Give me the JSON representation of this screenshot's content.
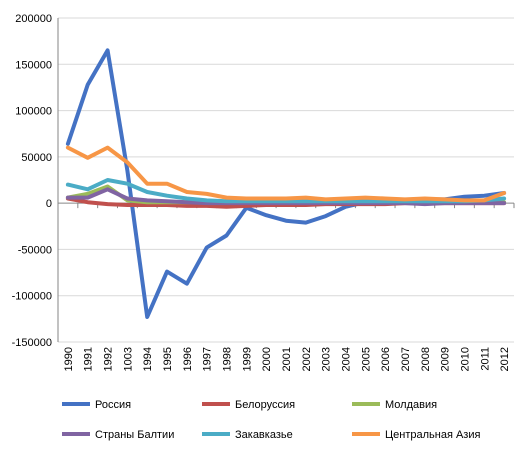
{
  "chart_data": {
    "type": "line",
    "title": "",
    "xlabel": "",
    "ylabel": "",
    "ylim": [
      -150000,
      200000
    ],
    "yticks": [
      200000,
      150000,
      100000,
      50000,
      0,
      -50000,
      -100000,
      -150000
    ],
    "ytick_labels": [
      "200000",
      "150000",
      "100000",
      "50000",
      "0",
      "-50000",
      "-100000",
      "-150000"
    ],
    "categories": [
      "1990",
      "1991",
      "1992",
      "1003",
      "1994",
      "1995",
      "1996",
      "1997",
      "1998",
      "1999",
      "2000",
      "2001",
      "2002",
      "2003",
      "2004",
      "2005",
      "2006",
      "2007",
      "2008",
      "2009",
      "2010",
      "2011",
      "2012"
    ],
    "grid": "horizontal",
    "legend_position": "bottom",
    "series": [
      {
        "name": "Россия",
        "color": "#4472C4",
        "values": [
          64000,
          128000,
          165000,
          35000,
          -123000,
          -74000,
          -87000,
          -48000,
          -35000,
          -5000,
          -13000,
          -19000,
          -21000,
          -14000,
          -4000,
          1000,
          1000,
          3000,
          4000,
          4000,
          7000,
          8000,
          11000
        ]
      },
      {
        "name": "Белоруссия",
        "color": "#C0504D",
        "values": [
          5000,
          1000,
          -1000,
          -2000,
          -2000,
          -2000,
          -3000,
          -3000,
          -4000,
          -3000,
          -2000,
          -2000,
          -2000,
          -1000,
          -1000,
          -1000,
          -1000,
          0,
          0,
          0,
          0,
          0,
          0
        ]
      },
      {
        "name": "Молдавия",
        "color": "#9BBB59",
        "values": [
          6000,
          10000,
          18000,
          3000,
          1000,
          1000,
          1000,
          1000,
          1000,
          1000,
          1000,
          1000,
          1000,
          1000,
          1000,
          1000,
          1000,
          1000,
          1000,
          1000,
          1000,
          1000,
          1000
        ]
      },
      {
        "name": "Страны Балтии",
        "color": "#8064A2",
        "values": [
          6000,
          6000,
          15000,
          5000,
          3000,
          2000,
          1000,
          0,
          0,
          0,
          0,
          0,
          0,
          0,
          0,
          0,
          0,
          0,
          -1000,
          0,
          0,
          0,
          0
        ]
      },
      {
        "name": "Закавказье",
        "color": "#4BACC6",
        "values": [
          20000,
          15000,
          25000,
          21000,
          12000,
          8000,
          5000,
          3000,
          2000,
          2000,
          2000,
          2000,
          2000,
          2000,
          2000,
          2000,
          2000,
          2000,
          2000,
          2000,
          2000,
          3000,
          5000
        ]
      },
      {
        "name": "Центральная Азия",
        "color": "#F79646",
        "values": [
          60000,
          49000,
          60000,
          44000,
          21000,
          21000,
          12000,
          10000,
          6000,
          5000,
          5000,
          5000,
          6000,
          4000,
          5000,
          6000,
          5000,
          4000,
          5000,
          4000,
          3000,
          3000,
          11000
        ]
      }
    ]
  }
}
